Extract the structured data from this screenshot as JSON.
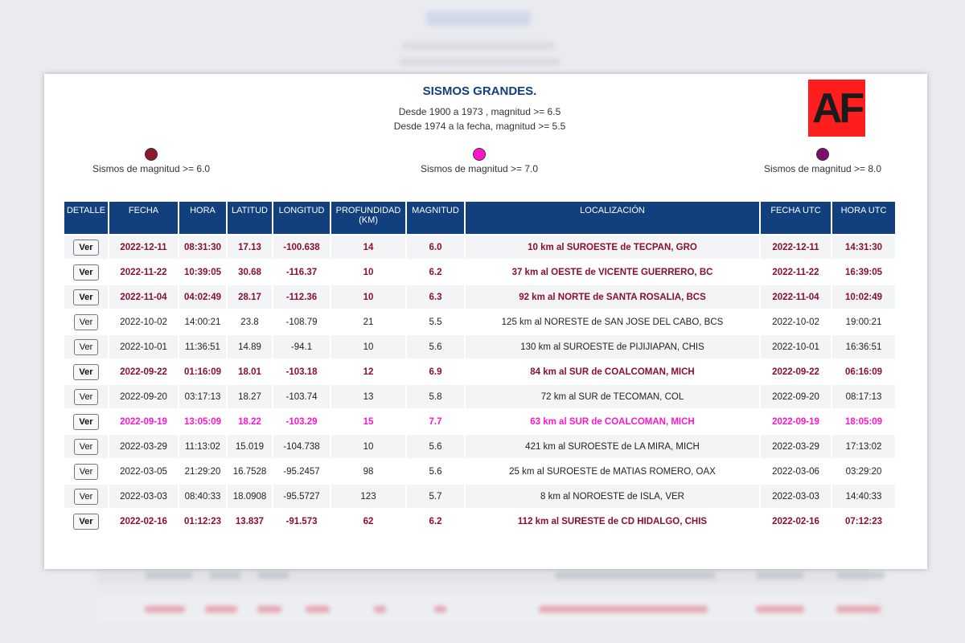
{
  "header": {
    "title": "SISMOS GRANDES.",
    "subtitle_1": "Desde 1900 a 1973 , magnitud >= 6.5",
    "subtitle_2": "Desde 1974 a la fecha, magnitud >= 5.5",
    "logo": "AF"
  },
  "legend": [
    {
      "label": "Sismos de magnitud >= 6.0",
      "color": "#8b1a2e"
    },
    {
      "label": "Sismos de magnitud >= 7.0",
      "color": "#ff16cc"
    },
    {
      "label": "Sismos de magnitud >= 8.0",
      "color": "#7a0f6e"
    }
  ],
  "table": {
    "headers": [
      "DETALLE",
      "FECHA",
      "HORA",
      "LATITUD",
      "LONGITUD",
      "PROFUNDIDAD (KM)",
      "MAGNITUD",
      "LOCALIZACIÓN",
      "FECHA UTC",
      "HORA UTC"
    ],
    "button_label": "Ver",
    "rows": [
      {
        "fecha": "2022-12-11",
        "hora": "08:31:30",
        "lat": "17.13",
        "lon": "-100.638",
        "prof": "14",
        "mag": "6.0",
        "loc": "10 km al SUROESTE de TECPAN, GRO",
        "fecha_utc": "2022-12-11",
        "hora_utc": "14:31:30",
        "cls": "m6"
      },
      {
        "fecha": "2022-11-22",
        "hora": "10:39:05",
        "lat": "30.68",
        "lon": "-116.37",
        "prof": "10",
        "mag": "6.2",
        "loc": "37 km al OESTE de VICENTE GUERRERO, BC",
        "fecha_utc": "2022-11-22",
        "hora_utc": "16:39:05",
        "cls": "m6"
      },
      {
        "fecha": "2022-11-04",
        "hora": "04:02:49",
        "lat": "28.17",
        "lon": "-112.36",
        "prof": "10",
        "mag": "6.3",
        "loc": "92 km al NORTE de SANTA ROSALIA, BCS",
        "fecha_utc": "2022-11-04",
        "hora_utc": "10:02:49",
        "cls": "m6"
      },
      {
        "fecha": "2022-10-02",
        "hora": "14:00:21",
        "lat": "23.8",
        "lon": "-108.79",
        "prof": "21",
        "mag": "5.5",
        "loc": "125 km al NORESTE de SAN JOSE DEL CABO, BCS",
        "fecha_utc": "2022-10-02",
        "hora_utc": "19:00:21",
        "cls": "m0"
      },
      {
        "fecha": "2022-10-01",
        "hora": "11:36:51",
        "lat": "14.89",
        "lon": "-94.1",
        "prof": "10",
        "mag": "5.6",
        "loc": "130 km al SUROESTE de PIJIJIAPAN, CHIS",
        "fecha_utc": "2022-10-01",
        "hora_utc": "16:36:51",
        "cls": "m0"
      },
      {
        "fecha": "2022-09-22",
        "hora": "01:16:09",
        "lat": "18.01",
        "lon": "-103.18",
        "prof": "12",
        "mag": "6.9",
        "loc": "84 km al SUR de COALCOMAN, MICH",
        "fecha_utc": "2022-09-22",
        "hora_utc": "06:16:09",
        "cls": "m6"
      },
      {
        "fecha": "2022-09-20",
        "hora": "03:17:13",
        "lat": "18.27",
        "lon": "-103.74",
        "prof": "13",
        "mag": "5.8",
        "loc": "72 km al SUR de TECOMAN, COL",
        "fecha_utc": "2022-09-20",
        "hora_utc": "08:17:13",
        "cls": "m0"
      },
      {
        "fecha": "2022-09-19",
        "hora": "13:05:09",
        "lat": "18.22",
        "lon": "-103.29",
        "prof": "15",
        "mag": "7.7",
        "loc": "63 km al SUR de COALCOMAN, MICH",
        "fecha_utc": "2022-09-19",
        "hora_utc": "18:05:09",
        "cls": "m7"
      },
      {
        "fecha": "2022-03-29",
        "hora": "11:13:02",
        "lat": "15.019",
        "lon": "-104.738",
        "prof": "10",
        "mag": "5.6",
        "loc": "421 km al SUROESTE de LA MIRA, MICH",
        "fecha_utc": "2022-03-29",
        "hora_utc": "17:13:02",
        "cls": "m0"
      },
      {
        "fecha": "2022-03-05",
        "hora": "21:29:20",
        "lat": "16.7528",
        "lon": "-95.2457",
        "prof": "98",
        "mag": "5.6",
        "loc": "25 km al SUROESTE de MATIAS ROMERO, OAX",
        "fecha_utc": "2022-03-06",
        "hora_utc": "03:29:20",
        "cls": "m0"
      },
      {
        "fecha": "2022-03-03",
        "hora": "08:40:33",
        "lat": "18.0908",
        "lon": "-95.5727",
        "prof": "123",
        "mag": "5.7",
        "loc": "8 km al NOROESTE de ISLA, VER",
        "fecha_utc": "2022-03-03",
        "hora_utc": "14:40:33",
        "cls": "m0"
      },
      {
        "fecha": "2022-02-16",
        "hora": "01:12:23",
        "lat": "13.837",
        "lon": "-91.573",
        "prof": "62",
        "mag": "6.2",
        "loc": "112 km al SURESTE de CD HIDALGO, CHIS",
        "fecha_utc": "2022-02-16",
        "hora_utc": "07:12:23",
        "cls": "m6"
      }
    ]
  }
}
